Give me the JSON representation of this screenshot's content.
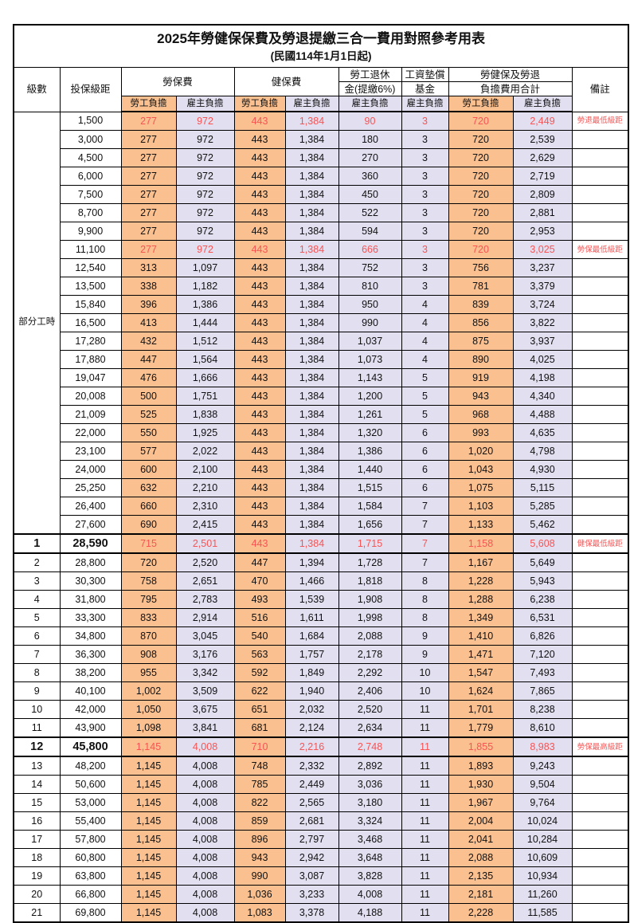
{
  "title": "2025年勞健保保費及勞退提繳三合一費用對照參考用表",
  "subtitle": "(民國114年1月1日起)",
  "colors": {
    "employee_bg": "#FAC090",
    "employer_bg": "#E2DFF0",
    "highlight_red": "#F85454",
    "grid": "#000000"
  },
  "header": {
    "level": "級數",
    "bracket": "投保級距",
    "labor": "勞保費",
    "health": "健保費",
    "pension_line1": "勞工退休",
    "pension_line2": "金(提繳6%)",
    "wage_line1": "工資墊償",
    "wage_line2": "基金",
    "total_line1": "勞健保及勞退",
    "total_line2": "負擔費用合計",
    "employee": "勞工負擔",
    "employer": "雇主負擔",
    "note": "備註"
  },
  "table": {
    "part_time_label": "部分工時",
    "part_time_rowspan": 23,
    "rows": [
      {
        "level": "",
        "bracket": "1,500",
        "values": [
          "277",
          "972",
          "443",
          "1,384",
          "90",
          "3",
          "720",
          "2,449"
        ],
        "remark": "勞退最低級距",
        "red": true,
        "bold": false,
        "section": false
      },
      {
        "level": "",
        "bracket": "3,000",
        "values": [
          "277",
          "972",
          "443",
          "1,384",
          "180",
          "3",
          "720",
          "2,539"
        ],
        "remark": "",
        "red": false,
        "bold": false,
        "section": false
      },
      {
        "level": "",
        "bracket": "4,500",
        "values": [
          "277",
          "972",
          "443",
          "1,384",
          "270",
          "3",
          "720",
          "2,629"
        ],
        "remark": "",
        "red": false,
        "bold": false,
        "section": false
      },
      {
        "level": "",
        "bracket": "6,000",
        "values": [
          "277",
          "972",
          "443",
          "1,384",
          "360",
          "3",
          "720",
          "2,719"
        ],
        "remark": "",
        "red": false,
        "bold": false,
        "section": false
      },
      {
        "level": "",
        "bracket": "7,500",
        "values": [
          "277",
          "972",
          "443",
          "1,384",
          "450",
          "3",
          "720",
          "2,809"
        ],
        "remark": "",
        "red": false,
        "bold": false,
        "section": false
      },
      {
        "level": "",
        "bracket": "8,700",
        "values": [
          "277",
          "972",
          "443",
          "1,384",
          "522",
          "3",
          "720",
          "2,881"
        ],
        "remark": "",
        "red": false,
        "bold": false,
        "section": false
      },
      {
        "level": "",
        "bracket": "9,900",
        "values": [
          "277",
          "972",
          "443",
          "1,384",
          "594",
          "3",
          "720",
          "2,953"
        ],
        "remark": "",
        "red": false,
        "bold": false,
        "section": false
      },
      {
        "level": "",
        "bracket": "11,100",
        "values": [
          "277",
          "972",
          "443",
          "1,384",
          "666",
          "3",
          "720",
          "3,025"
        ],
        "remark": "勞保最低級距",
        "red": true,
        "bold": false,
        "section": false
      },
      {
        "level": "",
        "bracket": "12,540",
        "values": [
          "313",
          "1,097",
          "443",
          "1,384",
          "752",
          "3",
          "756",
          "3,237"
        ],
        "remark": "",
        "red": false,
        "bold": false,
        "section": false
      },
      {
        "level": "",
        "bracket": "13,500",
        "values": [
          "338",
          "1,182",
          "443",
          "1,384",
          "810",
          "3",
          "781",
          "3,379"
        ],
        "remark": "",
        "red": false,
        "bold": false,
        "section": false
      },
      {
        "level": "",
        "bracket": "15,840",
        "values": [
          "396",
          "1,386",
          "443",
          "1,384",
          "950",
          "4",
          "839",
          "3,724"
        ],
        "remark": "",
        "red": false,
        "bold": false,
        "section": false
      },
      {
        "level": "",
        "bracket": "16,500",
        "values": [
          "413",
          "1,444",
          "443",
          "1,384",
          "990",
          "4",
          "856",
          "3,822"
        ],
        "remark": "",
        "red": false,
        "bold": false,
        "section": false
      },
      {
        "level": "",
        "bracket": "17,280",
        "values": [
          "432",
          "1,512",
          "443",
          "1,384",
          "1,037",
          "4",
          "875",
          "3,937"
        ],
        "remark": "",
        "red": false,
        "bold": false,
        "section": false
      },
      {
        "level": "",
        "bracket": "17,880",
        "values": [
          "447",
          "1,564",
          "443",
          "1,384",
          "1,073",
          "4",
          "890",
          "4,025"
        ],
        "remark": "",
        "red": false,
        "bold": false,
        "section": false
      },
      {
        "level": "",
        "bracket": "19,047",
        "values": [
          "476",
          "1,666",
          "443",
          "1,384",
          "1,143",
          "5",
          "919",
          "4,198"
        ],
        "remark": "",
        "red": false,
        "bold": false,
        "section": false
      },
      {
        "level": "",
        "bracket": "20,008",
        "values": [
          "500",
          "1,751",
          "443",
          "1,384",
          "1,200",
          "5",
          "943",
          "4,340"
        ],
        "remark": "",
        "red": false,
        "bold": false,
        "section": false
      },
      {
        "level": "",
        "bracket": "21,009",
        "values": [
          "525",
          "1,838",
          "443",
          "1,384",
          "1,261",
          "5",
          "968",
          "4,488"
        ],
        "remark": "",
        "red": false,
        "bold": false,
        "section": false
      },
      {
        "level": "",
        "bracket": "22,000",
        "values": [
          "550",
          "1,925",
          "443",
          "1,384",
          "1,320",
          "6",
          "993",
          "4,635"
        ],
        "remark": "",
        "red": false,
        "bold": false,
        "section": false
      },
      {
        "level": "",
        "bracket": "23,100",
        "values": [
          "577",
          "2,022",
          "443",
          "1,384",
          "1,386",
          "6",
          "1,020",
          "4,798"
        ],
        "remark": "",
        "red": false,
        "bold": false,
        "section": false
      },
      {
        "level": "",
        "bracket": "24,000",
        "values": [
          "600",
          "2,100",
          "443",
          "1,384",
          "1,440",
          "6",
          "1,043",
          "4,930"
        ],
        "remark": "",
        "red": false,
        "bold": false,
        "section": false
      },
      {
        "level": "",
        "bracket": "25,250",
        "values": [
          "632",
          "2,210",
          "443",
          "1,384",
          "1,515",
          "6",
          "1,075",
          "5,115"
        ],
        "remark": "",
        "red": false,
        "bold": false,
        "section": false
      },
      {
        "level": "",
        "bracket": "26,400",
        "values": [
          "660",
          "2,310",
          "443",
          "1,384",
          "1,584",
          "7",
          "1,103",
          "5,285"
        ],
        "remark": "",
        "red": false,
        "bold": false,
        "section": false
      },
      {
        "level": "",
        "bracket": "27,600",
        "values": [
          "690",
          "2,415",
          "443",
          "1,384",
          "1,656",
          "7",
          "1,133",
          "5,462"
        ],
        "remark": "",
        "red": false,
        "bold": false,
        "section": false
      },
      {
        "level": "1",
        "bracket": "28,590",
        "values": [
          "715",
          "2,501",
          "443",
          "1,384",
          "1,715",
          "7",
          "1,158",
          "5,608"
        ],
        "remark": "健保最低級距",
        "red": true,
        "bold": true,
        "section": true
      },
      {
        "level": "2",
        "bracket": "28,800",
        "values": [
          "720",
          "2,520",
          "447",
          "1,394",
          "1,728",
          "7",
          "1,167",
          "5,649"
        ],
        "remark": "",
        "red": false,
        "bold": false,
        "section": true
      },
      {
        "level": "3",
        "bracket": "30,300",
        "values": [
          "758",
          "2,651",
          "470",
          "1,466",
          "1,818",
          "8",
          "1,228",
          "5,943"
        ],
        "remark": "",
        "red": false,
        "bold": false,
        "section": false
      },
      {
        "level": "4",
        "bracket": "31,800",
        "values": [
          "795",
          "2,783",
          "493",
          "1,539",
          "1,908",
          "8",
          "1,288",
          "6,238"
        ],
        "remark": "",
        "red": false,
        "bold": false,
        "section": false
      },
      {
        "level": "5",
        "bracket": "33,300",
        "values": [
          "833",
          "2,914",
          "516",
          "1,611",
          "1,998",
          "8",
          "1,349",
          "6,531"
        ],
        "remark": "",
        "red": false,
        "bold": false,
        "section": false
      },
      {
        "level": "6",
        "bracket": "34,800",
        "values": [
          "870",
          "3,045",
          "540",
          "1,684",
          "2,088",
          "9",
          "1,410",
          "6,826"
        ],
        "remark": "",
        "red": false,
        "bold": false,
        "section": false
      },
      {
        "level": "7",
        "bracket": "36,300",
        "values": [
          "908",
          "3,176",
          "563",
          "1,757",
          "2,178",
          "9",
          "1,471",
          "7,120"
        ],
        "remark": "",
        "red": false,
        "bold": false,
        "section": false
      },
      {
        "level": "8",
        "bracket": "38,200",
        "values": [
          "955",
          "3,342",
          "592",
          "1,849",
          "2,292",
          "10",
          "1,547",
          "7,493"
        ],
        "remark": "",
        "red": false,
        "bold": false,
        "section": false
      },
      {
        "level": "9",
        "bracket": "40,100",
        "values": [
          "1,002",
          "3,509",
          "622",
          "1,940",
          "2,406",
          "10",
          "1,624",
          "7,865"
        ],
        "remark": "",
        "red": false,
        "bold": false,
        "section": false
      },
      {
        "level": "10",
        "bracket": "42,000",
        "values": [
          "1,050",
          "3,675",
          "651",
          "2,032",
          "2,520",
          "11",
          "1,701",
          "8,238"
        ],
        "remark": "",
        "red": false,
        "bold": false,
        "section": false
      },
      {
        "level": "11",
        "bracket": "43,900",
        "values": [
          "1,098",
          "3,841",
          "681",
          "2,124",
          "2,634",
          "11",
          "1,779",
          "8,610"
        ],
        "remark": "",
        "red": false,
        "bold": false,
        "section": false
      },
      {
        "level": "12",
        "bracket": "45,800",
        "values": [
          "1,145",
          "4,008",
          "710",
          "2,216",
          "2,748",
          "11",
          "1,855",
          "8,983"
        ],
        "remark": "勞保最高級距",
        "red": true,
        "bold": true,
        "section": true
      },
      {
        "level": "13",
        "bracket": "48,200",
        "values": [
          "1,145",
          "4,008",
          "748",
          "2,332",
          "2,892",
          "11",
          "1,893",
          "9,243"
        ],
        "remark": "",
        "red": false,
        "bold": false,
        "section": true
      },
      {
        "level": "14",
        "bracket": "50,600",
        "values": [
          "1,145",
          "4,008",
          "785",
          "2,449",
          "3,036",
          "11",
          "1,930",
          "9,504"
        ],
        "remark": "",
        "red": false,
        "bold": false,
        "section": false
      },
      {
        "level": "15",
        "bracket": "53,000",
        "values": [
          "1,145",
          "4,008",
          "822",
          "2,565",
          "3,180",
          "11",
          "1,967",
          "9,764"
        ],
        "remark": "",
        "red": false,
        "bold": false,
        "section": false
      },
      {
        "level": "16",
        "bracket": "55,400",
        "values": [
          "1,145",
          "4,008",
          "859",
          "2,681",
          "3,324",
          "11",
          "2,004",
          "10,024"
        ],
        "remark": "",
        "red": false,
        "bold": false,
        "section": false
      },
      {
        "level": "17",
        "bracket": "57,800",
        "values": [
          "1,145",
          "4,008",
          "896",
          "2,797",
          "3,468",
          "11",
          "2,041",
          "10,284"
        ],
        "remark": "",
        "red": false,
        "bold": false,
        "section": false
      },
      {
        "level": "18",
        "bracket": "60,800",
        "values": [
          "1,145",
          "4,008",
          "943",
          "2,942",
          "3,648",
          "11",
          "2,088",
          "10,609"
        ],
        "remark": "",
        "red": false,
        "bold": false,
        "section": false
      },
      {
        "level": "19",
        "bracket": "63,800",
        "values": [
          "1,145",
          "4,008",
          "990",
          "3,087",
          "3,828",
          "11",
          "2,135",
          "10,934"
        ],
        "remark": "",
        "red": false,
        "bold": false,
        "section": false
      },
      {
        "level": "20",
        "bracket": "66,800",
        "values": [
          "1,145",
          "4,008",
          "1,036",
          "3,233",
          "4,008",
          "11",
          "2,181",
          "11,260"
        ],
        "remark": "",
        "red": false,
        "bold": false,
        "section": false
      },
      {
        "level": "21",
        "bracket": "69,800",
        "values": [
          "1,145",
          "4,008",
          "1,083",
          "3,378",
          "4,188",
          "11",
          "2,228",
          "11,585"
        ],
        "remark": "",
        "red": false,
        "bold": false,
        "section": false
      }
    ]
  }
}
